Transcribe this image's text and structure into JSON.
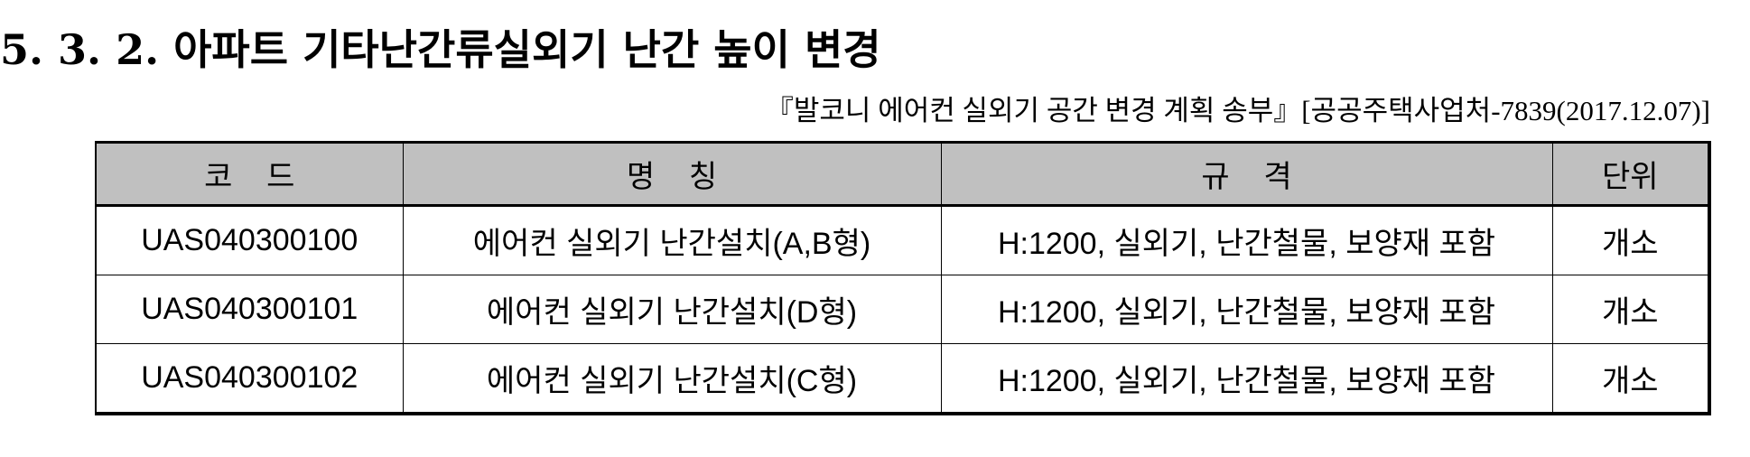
{
  "heading": "5. 3. 2. 아파트 기타난간류실외기 난간 높이 변경",
  "reference": "『발코니 에어컨 실외기 공간 변경 계획 송부』[공공주택사업처-7839(2017.12.07)]",
  "table": {
    "headers": {
      "code": "코    드",
      "name": "명    칭",
      "spec": "규    격",
      "unit": "단위"
    },
    "rows": [
      {
        "code": "UAS040300100",
        "name": "에어컨 실외기 난간설치(A,B형)",
        "spec": "H:1200, 실외기, 난간철물, 보양재 포함",
        "unit": "개소"
      },
      {
        "code": "UAS040300101",
        "name": "에어컨 실외기 난간설치(D형)",
        "spec": "H:1200, 실외기, 난간철물, 보양재 포함",
        "unit": "개소"
      },
      {
        "code": "UAS040300102",
        "name": "에어컨 실외기 난간설치(C형)",
        "spec": "H:1200, 실외기, 난간철물, 보양재 포함",
        "unit": "개소"
      }
    ]
  }
}
